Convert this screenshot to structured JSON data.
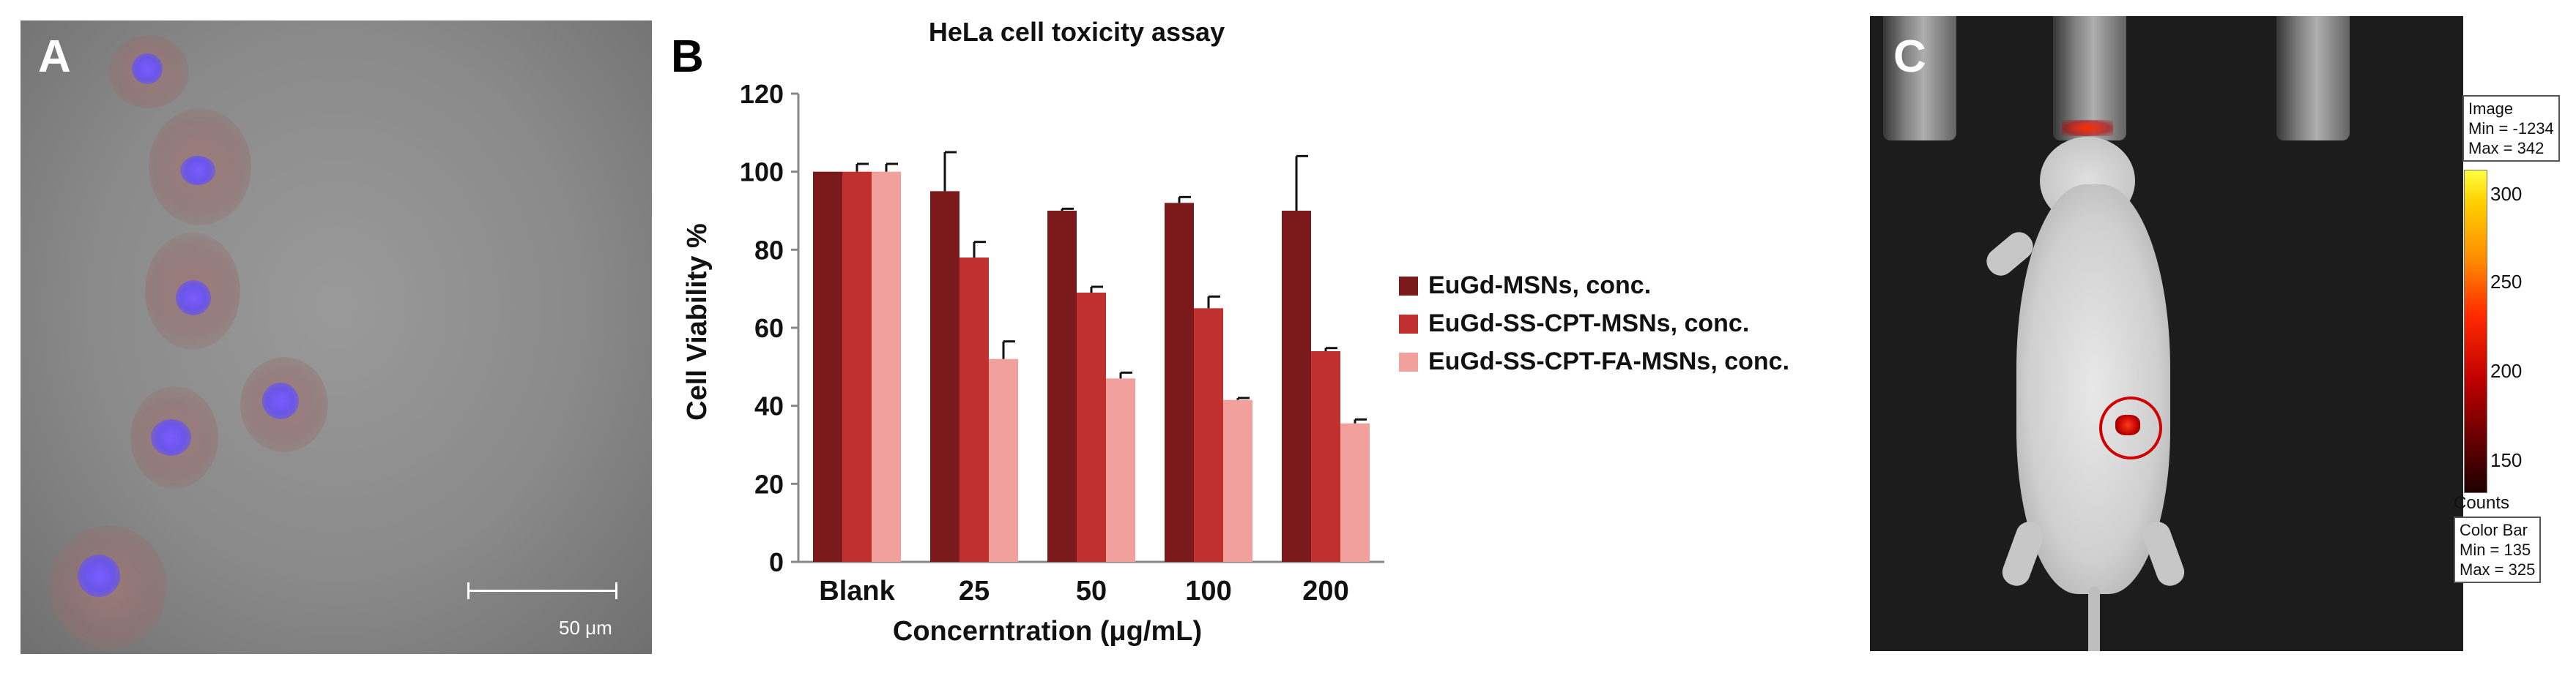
{
  "panel_a": {
    "letter": "A",
    "scale_bar_label": "50 μm"
  },
  "panel_b": {
    "letter": "B"
  },
  "panel_c": {
    "letter": "C",
    "image_box": {
      "title": "Image",
      "min": "Min = -1234",
      "max": "Max = 342"
    },
    "colorbar_ticks": [
      "300",
      "250",
      "200",
      "150"
    ],
    "counts_label": "Counts",
    "color_bar_box": {
      "title": "Color Bar",
      "min": "Min = 135",
      "max": "Max = 325"
    }
  },
  "colors": {
    "series_1": "#7b1a1a",
    "series_2": "#c0302e",
    "series_3": "#f2a09e"
  },
  "chart_data": {
    "type": "bar",
    "title": "HeLa cell toxicity assay",
    "xlabel": "Concerntration (μg/mL)",
    "ylabel": "Cell Viability %",
    "ylim": [
      0,
      120
    ],
    "yticks": [
      0,
      20,
      40,
      60,
      80,
      100,
      120
    ],
    "categories": [
      "Blank",
      "25",
      "50",
      "100",
      "200"
    ],
    "legend_position": "right",
    "grid": false,
    "series": [
      {
        "name": "EuGd-MSNs, conc.",
        "values": [
          100,
          95,
          90,
          92,
          90
        ],
        "errors": [
          0,
          10,
          0.5,
          1.5,
          14
        ]
      },
      {
        "name": "EuGd-SS-CPT-MSNs, conc.",
        "values": [
          100,
          78,
          69,
          65,
          54
        ],
        "errors": [
          2,
          4,
          1.5,
          3,
          0.8
        ]
      },
      {
        "name": "EuGd-SS-CPT-FA-MSNs, conc.",
        "values": [
          100,
          52,
          47,
          41.5,
          35.5
        ],
        "errors": [
          2,
          4.5,
          1.5,
          0.5,
          1
        ]
      }
    ]
  }
}
